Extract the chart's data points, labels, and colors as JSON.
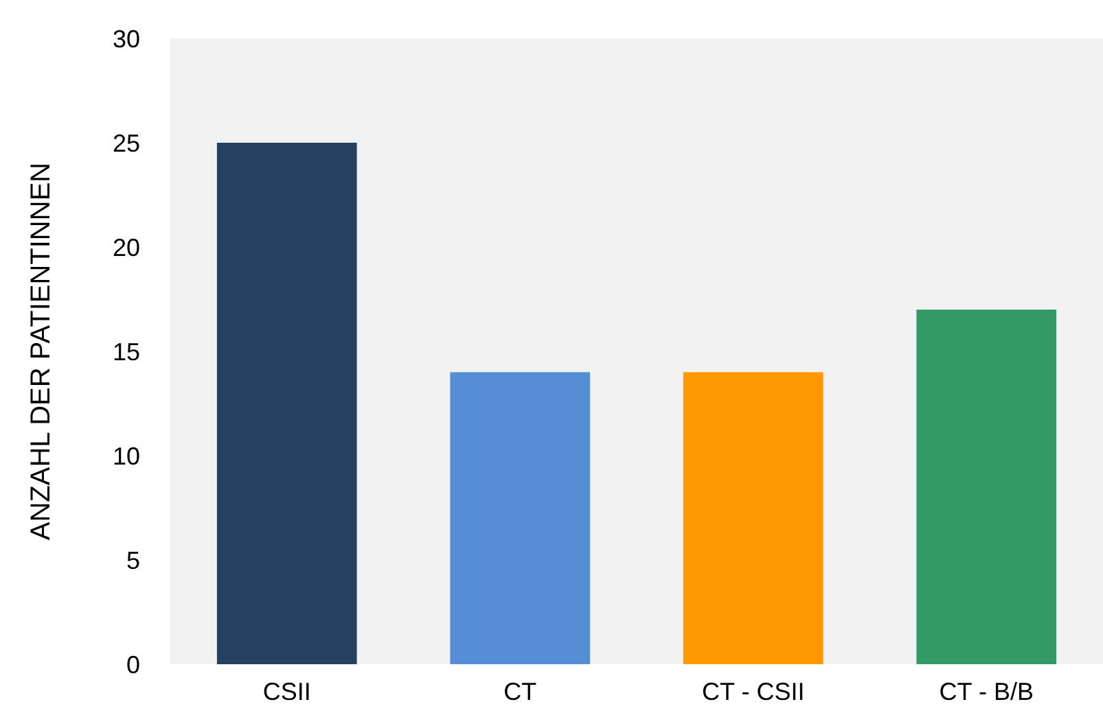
{
  "chart_data": {
    "type": "bar",
    "ylabel": "ANZAHL DER PATIENTINNEN",
    "categories": [
      "CSII",
      "CT",
      "CT - CSII",
      "CT - B/B"
    ],
    "values": [
      25,
      14,
      14,
      17
    ],
    "colors": [
      "#264061",
      "#558ed5",
      "#ff9900",
      "#339966"
    ],
    "ylim": [
      0,
      30
    ],
    "yticks": [
      0,
      5,
      10,
      15,
      20,
      25,
      30
    ]
  }
}
